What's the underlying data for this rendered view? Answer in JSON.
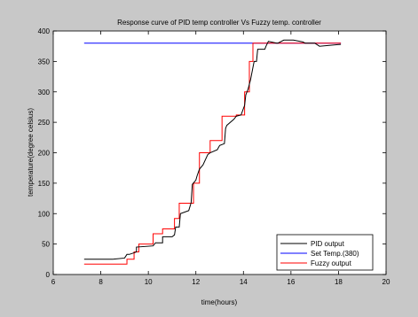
{
  "chart_data": {
    "type": "line",
    "title": "Response curve of PID temp controller Vs Fuzzy temp. controller",
    "xlabel": "time(hours)",
    "ylabel": "temperature(degree celsius)",
    "xlim": [
      6,
      20
    ],
    "ylim": [
      0,
      400
    ],
    "xticks": [
      "6",
      "8",
      "10",
      "12",
      "14",
      "16",
      "18",
      "20"
    ],
    "yticks": [
      "0",
      "50",
      "100",
      "150",
      "200",
      "250",
      "300",
      "350",
      "400"
    ],
    "grid": false,
    "legend_position": "bottom-right",
    "series": [
      {
        "name": "PID output",
        "color": "#000000",
        "x": [
          7.3,
          8.5,
          9.0,
          9.1,
          9.2,
          9.5,
          9.5,
          10.2,
          10.3,
          10.6,
          10.6,
          11.0,
          11.1,
          11.15,
          11.3,
          11.35,
          11.7,
          11.8,
          11.85,
          12.0,
          12.05,
          12.15,
          12.3,
          12.5,
          12.6,
          12.9,
          13.0,
          13.2,
          13.25,
          13.3,
          13.6,
          13.7,
          13.9,
          14.05,
          14.1,
          14.2,
          14.3,
          14.4,
          14.45,
          14.55,
          14.6,
          14.9,
          14.95,
          15.05,
          15.4,
          15.45,
          15.7,
          16.1,
          16.5,
          16.6,
          17.0,
          17.2,
          18.1
        ],
        "y": [
          25,
          25,
          27,
          33,
          33,
          37,
          45,
          47,
          52,
          52,
          62,
          62,
          65,
          78,
          78,
          100,
          105,
          118,
          148,
          155,
          162,
          173,
          180,
          197,
          200,
          205,
          212,
          215,
          240,
          245,
          255,
          260,
          262,
          278,
          295,
          305,
          320,
          340,
          350,
          350,
          370,
          370,
          375,
          383,
          380,
          380,
          385,
          385,
          382,
          380,
          380,
          375,
          378
        ]
      },
      {
        "name": "Set Temp.(380)",
        "color": "#0000ff",
        "x": [
          7.3,
          18.1
        ],
        "y": [
          380,
          380
        ]
      },
      {
        "name": "Fuzzy output",
        "color": "#ff0000",
        "x": [
          7.3,
          9.1,
          9.1,
          9.4,
          9.4,
          9.6,
          9.6,
          10.2,
          10.2,
          10.6,
          10.6,
          11.1,
          11.1,
          11.3,
          11.3,
          11.9,
          11.9,
          12.15,
          12.15,
          12.6,
          12.6,
          13.1,
          13.1,
          13.7,
          13.7,
          14.05,
          14.05,
          14.25,
          14.25,
          14.4,
          14.4,
          18.1
        ],
        "y": [
          17,
          17,
          25,
          25,
          37,
          37,
          50,
          50,
          67,
          67,
          75,
          75,
          92,
          92,
          117,
          117,
          150,
          150,
          200,
          200,
          220,
          220,
          260,
          260,
          262,
          262,
          300,
          300,
          350,
          350,
          380,
          380
        ]
      }
    ]
  }
}
